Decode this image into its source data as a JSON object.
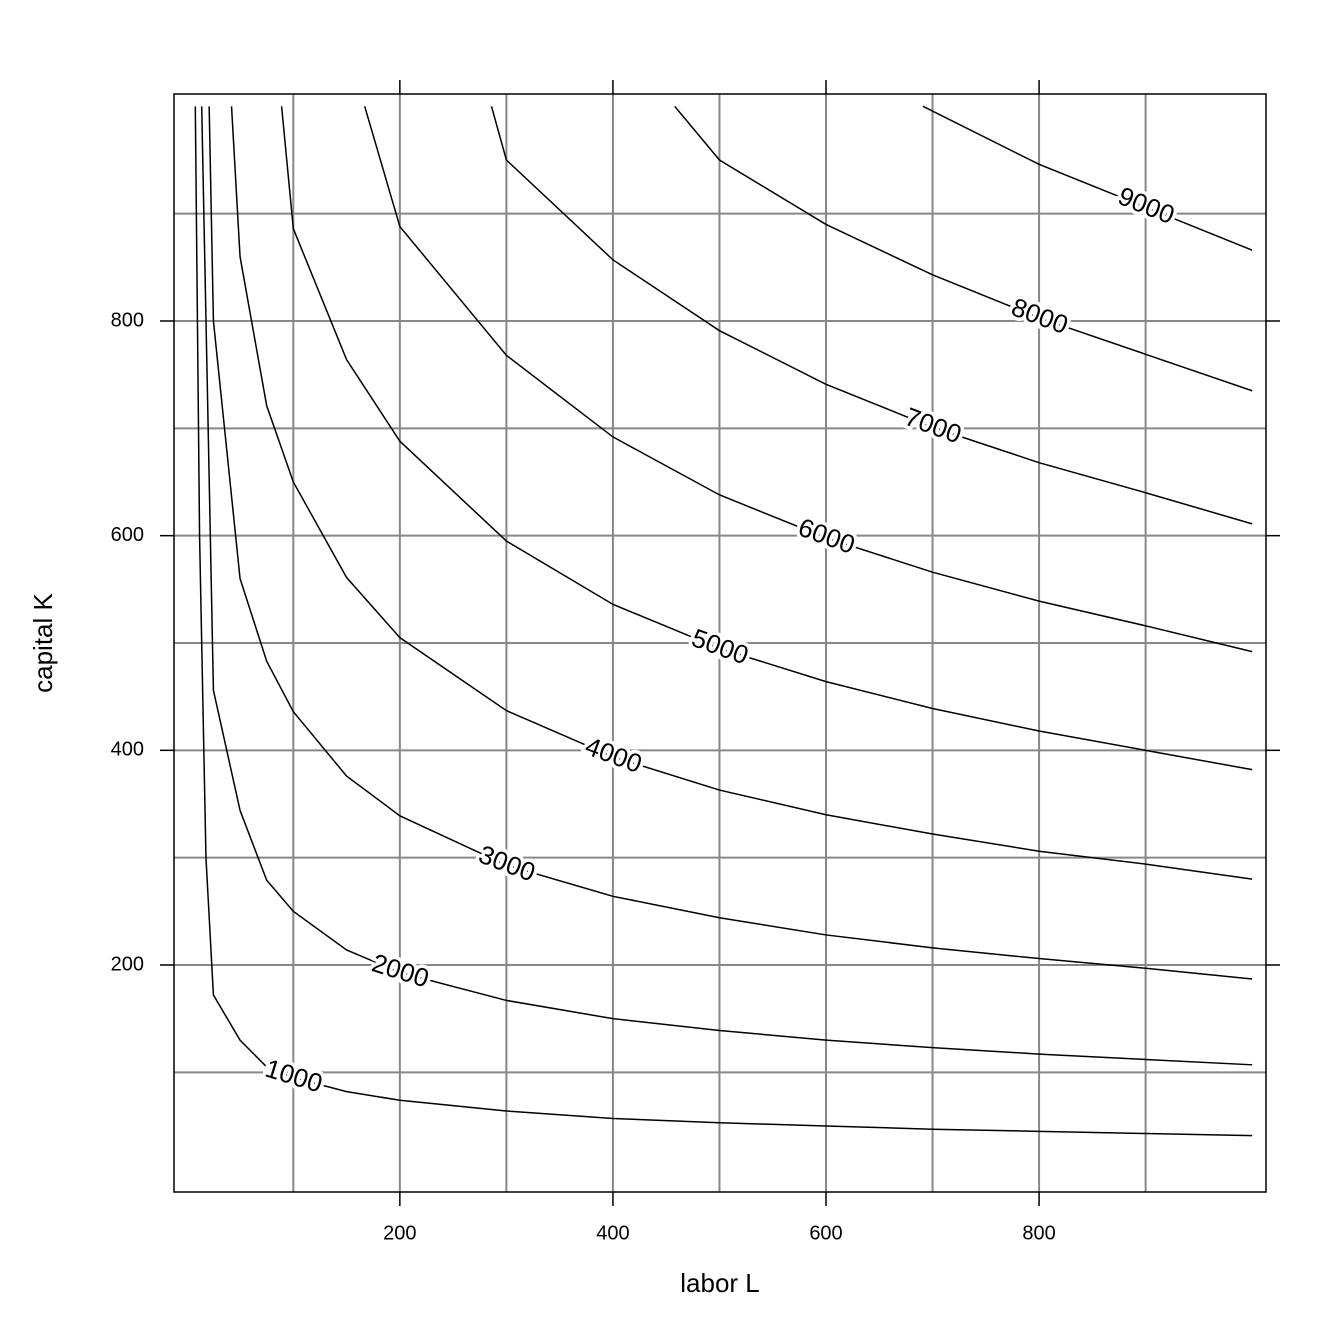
{
  "chart_data": {
    "type": "contour",
    "xlabel": "labor L",
    "ylabel": "capital K",
    "xlim": [
      -12,
      1013
    ],
    "ylim": [
      -11.5,
      1011.5
    ],
    "xticks": [
      200,
      400,
      600,
      800
    ],
    "yticks": [
      200,
      400,
      600,
      800
    ],
    "xgrid": [
      100,
      200,
      300,
      400,
      500,
      600,
      700,
      800,
      900
    ],
    "ygrid": [
      100,
      200,
      300,
      400,
      500,
      600,
      700,
      800,
      900
    ],
    "grid": true,
    "color": "#000000",
    "grid_color": "#888888",
    "contours": [
      {
        "level": 1000,
        "x": [
          8,
          12,
          18,
          25,
          50,
          75,
          100,
          150,
          200,
          300,
          400,
          500,
          600,
          700,
          800,
          900,
          1000
        ],
        "y": [
          1000,
          600,
          300,
          172,
          130,
          105,
          95,
          82,
          74,
          64,
          57,
          53,
          50,
          47,
          45,
          43,
          41
        ]
      },
      {
        "level": 2000,
        "x": [
          14,
          25,
          50,
          75,
          100,
          150,
          200,
          300,
          400,
          500,
          600,
          700,
          800,
          900,
          1000
        ],
        "y": [
          1000,
          456,
          344,
          279,
          250,
          214,
          193,
          167,
          150,
          139,
          130,
          123,
          117,
          112,
          107
        ]
      },
      {
        "level": 3000,
        "x": [
          21,
          25,
          50,
          75,
          100,
          150,
          200,
          300,
          400,
          500,
          600,
          700,
          800,
          900,
          1000
        ],
        "y": [
          1000,
          800,
          560,
          483,
          436,
          376,
          339,
          293,
          264,
          244,
          228,
          216,
          206,
          197,
          187
        ]
      },
      {
        "level": 4000,
        "x": [
          42,
          50,
          75,
          100,
          150,
          200,
          300,
          400,
          500,
          600,
          700,
          800,
          900,
          1000
        ],
        "y": [
          1000,
          860,
          721,
          650,
          561,
          505,
          437,
          394,
          363,
          340,
          322,
          306,
          294,
          280
        ]
      },
      {
        "level": 5000,
        "x": [
          89,
          100,
          150,
          200,
          300,
          400,
          500,
          600,
          700,
          800,
          900,
          1000
        ],
        "y": [
          1000,
          886,
          764,
          688,
          595,
          536,
          495,
          464,
          439,
          418,
          400,
          382
        ]
      },
      {
        "level": 6000,
        "x": [
          167,
          200,
          300,
          400,
          500,
          600,
          700,
          800,
          900,
          1000
        ],
        "y": [
          1000,
          888,
          768,
          692,
          638,
          598,
          566,
          539,
          516,
          492
        ]
      },
      {
        "level": 7000,
        "x": [
          286,
          300,
          400,
          500,
          600,
          700,
          800,
          900,
          1000
        ],
        "y": [
          1000,
          950,
          857,
          791,
          741,
          701,
          668,
          640,
          611
        ]
      },
      {
        "level": 8000,
        "x": [
          458,
          500,
          600,
          700,
          800,
          900,
          1000
        ],
        "y": [
          1000,
          950,
          890,
          843,
          803,
          769,
          735
        ]
      },
      {
        "level": 9000,
        "x": [
          691,
          800,
          900,
          1000
        ],
        "y": [
          1000,
          946,
          906,
          866
        ]
      }
    ]
  }
}
